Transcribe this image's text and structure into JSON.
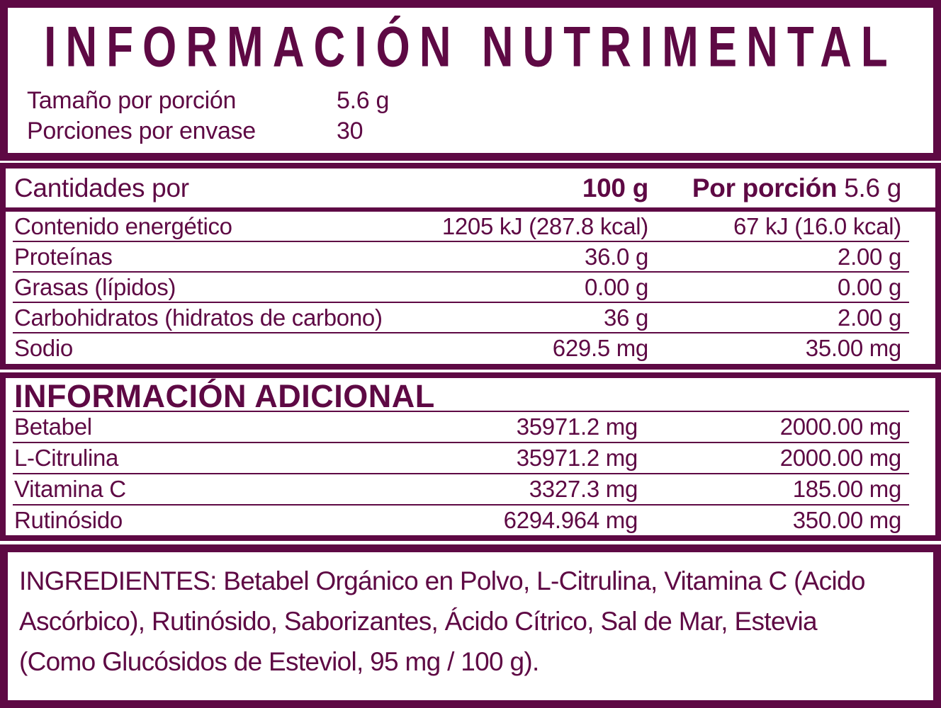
{
  "colors": {
    "plum": "#5E0944",
    "background": "#FFFFFF"
  },
  "header": {
    "title": "INFORMACIÓN NUTRIMENTAL",
    "serving_size_label": "Tamaño por porción",
    "serving_size_value": "5.6 g",
    "servings_label": "Porciones por envase",
    "servings_value": "30"
  },
  "nutrition_table": {
    "header": {
      "col1": "Cantidades por",
      "col2": "100 g",
      "col3_bold": "Por porción",
      "col3_value": "5.6 g"
    },
    "rows": [
      {
        "label": "Contenido energético",
        "per_100g": "1205 kJ (287.8 kcal)",
        "per_serving": "67 kJ (16.0 kcal)"
      },
      {
        "label": "Proteínas",
        "per_100g": "36.0 g",
        "per_serving": "2.00 g"
      },
      {
        "label": "Grasas (lípidos)",
        "per_100g": "0.00 g",
        "per_serving": "0.00 g"
      },
      {
        "label": "Carbohidratos (hidratos de carbono)",
        "per_100g": "36 g",
        "per_serving": "2.00 g"
      },
      {
        "label": "Sodio",
        "per_100g": "629.5 mg",
        "per_serving": "35.00 mg"
      }
    ]
  },
  "additional": {
    "title": "INFORMACIÓN ADICIONAL",
    "rows": [
      {
        "label": "Betabel",
        "per_100g": "35971.2 mg",
        "per_serving": "2000.00 mg"
      },
      {
        "label": "L-Citrulina",
        "per_100g": "35971.2 mg",
        "per_serving": "2000.00 mg"
      },
      {
        "label": "Vitamina C",
        "per_100g": "3327.3 mg",
        "per_serving": "185.00 mg"
      },
      {
        "label": "Rutinósido",
        "per_100g": "6294.964 mg",
        "per_serving": "350.00 mg"
      }
    ]
  },
  "ingredients": {
    "text": "INGREDIENTES: Betabel Orgánico en Polvo, L-Citrulina, Vitamina C (Acido Ascórbico), Rutinósido, Saborizantes, Ácido Cítrico, Sal de Mar, Estevia (Como Glucósidos de Esteviol, 95 mg / 100 g)."
  }
}
